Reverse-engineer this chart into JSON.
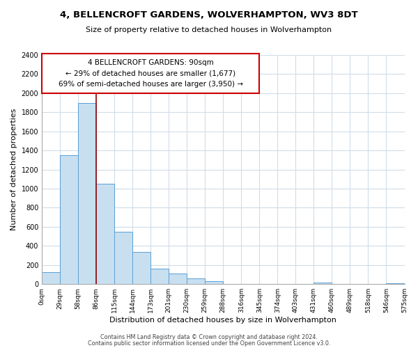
{
  "title": "4, BELLENCROFT GARDENS, WOLVERHAMPTON, WV3 8DT",
  "subtitle": "Size of property relative to detached houses in Wolverhampton",
  "xlabel": "Distribution of detached houses by size in Wolverhampton",
  "ylabel": "Number of detached properties",
  "bin_labels": [
    "0sqm",
    "29sqm",
    "58sqm",
    "86sqm",
    "115sqm",
    "144sqm",
    "173sqm",
    "201sqm",
    "230sqm",
    "259sqm",
    "288sqm",
    "316sqm",
    "345sqm",
    "374sqm",
    "403sqm",
    "431sqm",
    "460sqm",
    "489sqm",
    "518sqm",
    "546sqm",
    "575sqm"
  ],
  "bar_values": [
    125,
    1350,
    1900,
    1050,
    550,
    340,
    165,
    110,
    60,
    30,
    0,
    0,
    0,
    0,
    0,
    15,
    0,
    0,
    0,
    10
  ],
  "bar_color": "#c8dff0",
  "bar_edge_color": "#5a9fd4",
  "property_line_x": 3,
  "property_line_color": "#990000",
  "annotation_line1": "4 BELLENCROFT GARDENS: 90sqm",
  "annotation_line2": "← 29% of detached houses are smaller (1,677)",
  "annotation_line3": "69% of semi-detached houses are larger (3,950) →",
  "annotation_box_color": "#ffffff",
  "annotation_box_edge_color": "#cc0000",
  "ylim": [
    0,
    2400
  ],
  "yticks": [
    0,
    200,
    400,
    600,
    800,
    1000,
    1200,
    1400,
    1600,
    1800,
    2000,
    2200,
    2400
  ],
  "footer_line1": "Contains HM Land Registry data © Crown copyright and database right 2024.",
  "footer_line2": "Contains public sector information licensed under the Open Government Licence v3.0.",
  "background_color": "#ffffff",
  "grid_color": "#d0dce8"
}
